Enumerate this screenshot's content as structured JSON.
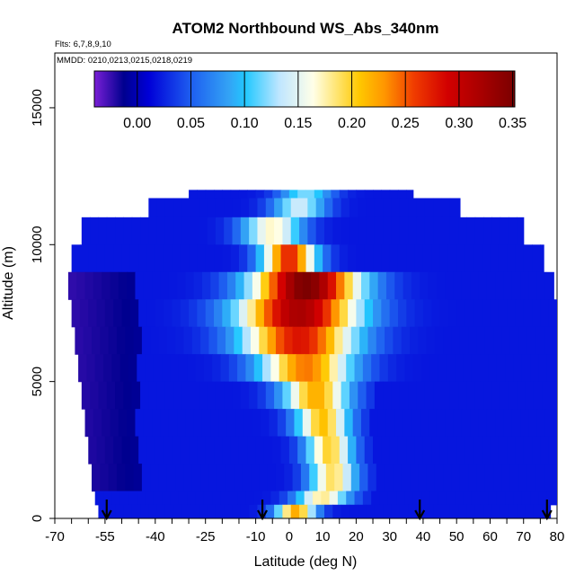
{
  "chart_data": {
    "type": "heatmap",
    "title": "ATOM2 Northbound WS_Abs_340nm",
    "flights_note": "Flts: 6,7,8,9,10",
    "dates_note": "MMDD: 0210,0213,0215,0218,0219",
    "xlabel": "Latitude (deg N)",
    "ylabel": "Altitude (m)",
    "xlim": [
      -70,
      80
    ],
    "ylim": [
      0,
      17000
    ],
    "x_ticks": [
      -70,
      -55,
      -40,
      -25,
      -10,
      0,
      10,
      20,
      30,
      40,
      50,
      60,
      70,
      80
    ],
    "y_ticks": [
      0,
      5000,
      10000,
      15000
    ],
    "colorbar": {
      "min": -0.04,
      "max": 0.352,
      "ticks": [
        0.0,
        0.05,
        0.1,
        0.15,
        0.2,
        0.25,
        0.3,
        0.35
      ],
      "tick_labels": [
        "0.00",
        "0.05",
        "0.10",
        "0.15",
        "0.20",
        "0.25",
        "0.30",
        "0.35"
      ],
      "colors": [
        "#7a1fd6",
        "#00008f",
        "#0000d8",
        "#1e5ef0",
        "#33a3f5",
        "#22c8ff",
        "#bfe6ff",
        "#ffffe8",
        "#ffe36a",
        "#ffc800",
        "#ff9600",
        "#f03c00",
        "#d20000",
        "#a80000",
        "#7a0000"
      ],
      "color_positions": [
        0,
        0.07,
        0.13,
        0.23,
        0.32,
        0.36,
        0.44,
        0.52,
        0.58,
        0.63,
        0.69,
        0.76,
        0.84,
        0.92,
        1
      ]
    },
    "profile_markers_lat": [
      -54.5,
      -8,
      39,
      77
    ],
    "cross_section": {
      "description_levels_m": [
        12000,
        11000,
        10000,
        9000,
        8000,
        7000,
        6000,
        5000,
        4000,
        3000,
        2000,
        1000,
        500
      ],
      "rows": [
        {
          "alt_bottom": 11700,
          "alt_top": 12000,
          "lat_min": -30,
          "lat_max": 37,
          "peak_lat": 5,
          "peak_val": 0.1,
          "width": 8
        },
        {
          "alt_bottom": 11000,
          "alt_top": 11700,
          "lat_min": -42,
          "lat_max": 51,
          "peak_lat": 3,
          "peak_val": 0.12,
          "width": 8
        },
        {
          "alt_bottom": 10000,
          "alt_top": 11000,
          "lat_min": -62,
          "lat_max": 70,
          "peak_lat": -5,
          "peak_val": 0.15,
          "width": 9
        },
        {
          "alt_bottom": 9000,
          "alt_top": 10000,
          "lat_min": -65,
          "lat_max": 76,
          "peak_lat": 0,
          "peak_val": 0.25,
          "width": 8
        },
        {
          "alt_bottom": 8000,
          "alt_top": 9000,
          "lat_min": -66,
          "lat_max": 79,
          "peak_lat": 5,
          "peak_val": 0.33,
          "width": 16
        },
        {
          "alt_bottom": 7000,
          "alt_top": 8000,
          "lat_min": -65,
          "lat_max": 80,
          "peak_lat": 3,
          "peak_val": 0.3,
          "width": 18
        },
        {
          "alt_bottom": 6000,
          "alt_top": 7000,
          "lat_min": -64,
          "lat_max": 80,
          "peak_lat": 3,
          "peak_val": 0.26,
          "width": 17
        },
        {
          "alt_bottom": 5000,
          "alt_top": 6000,
          "lat_min": -63,
          "lat_max": 80,
          "peak_lat": 5,
          "peak_val": 0.22,
          "width": 14
        },
        {
          "alt_bottom": 4000,
          "alt_top": 5000,
          "lat_min": -62,
          "lat_max": 80,
          "peak_lat": 8,
          "peak_val": 0.2,
          "width": 10
        },
        {
          "alt_bottom": 3000,
          "alt_top": 4000,
          "lat_min": -61,
          "lat_max": 80,
          "peak_lat": 10,
          "peak_val": 0.19,
          "width": 8
        },
        {
          "alt_bottom": 2000,
          "alt_top": 3000,
          "lat_min": -60,
          "lat_max": 80,
          "peak_lat": 12,
          "peak_val": 0.18,
          "width": 7
        },
        {
          "alt_bottom": 1000,
          "alt_top": 2000,
          "lat_min": -59,
          "lat_max": 80,
          "peak_lat": 13,
          "peak_val": 0.17,
          "width": 7
        },
        {
          "alt_bottom": 500,
          "alt_top": 1000,
          "lat_min": -58,
          "lat_max": 80,
          "peak_lat": 10,
          "peak_val": 0.16,
          "width": 8
        },
        {
          "alt_bottom": 0,
          "alt_top": 500,
          "lat_min": -57,
          "lat_max": 78,
          "peak_lat": 2,
          "peak_val": 0.2,
          "width": 6
        }
      ]
    },
    "grid": false,
    "colorbar_placement": "top-inside"
  }
}
